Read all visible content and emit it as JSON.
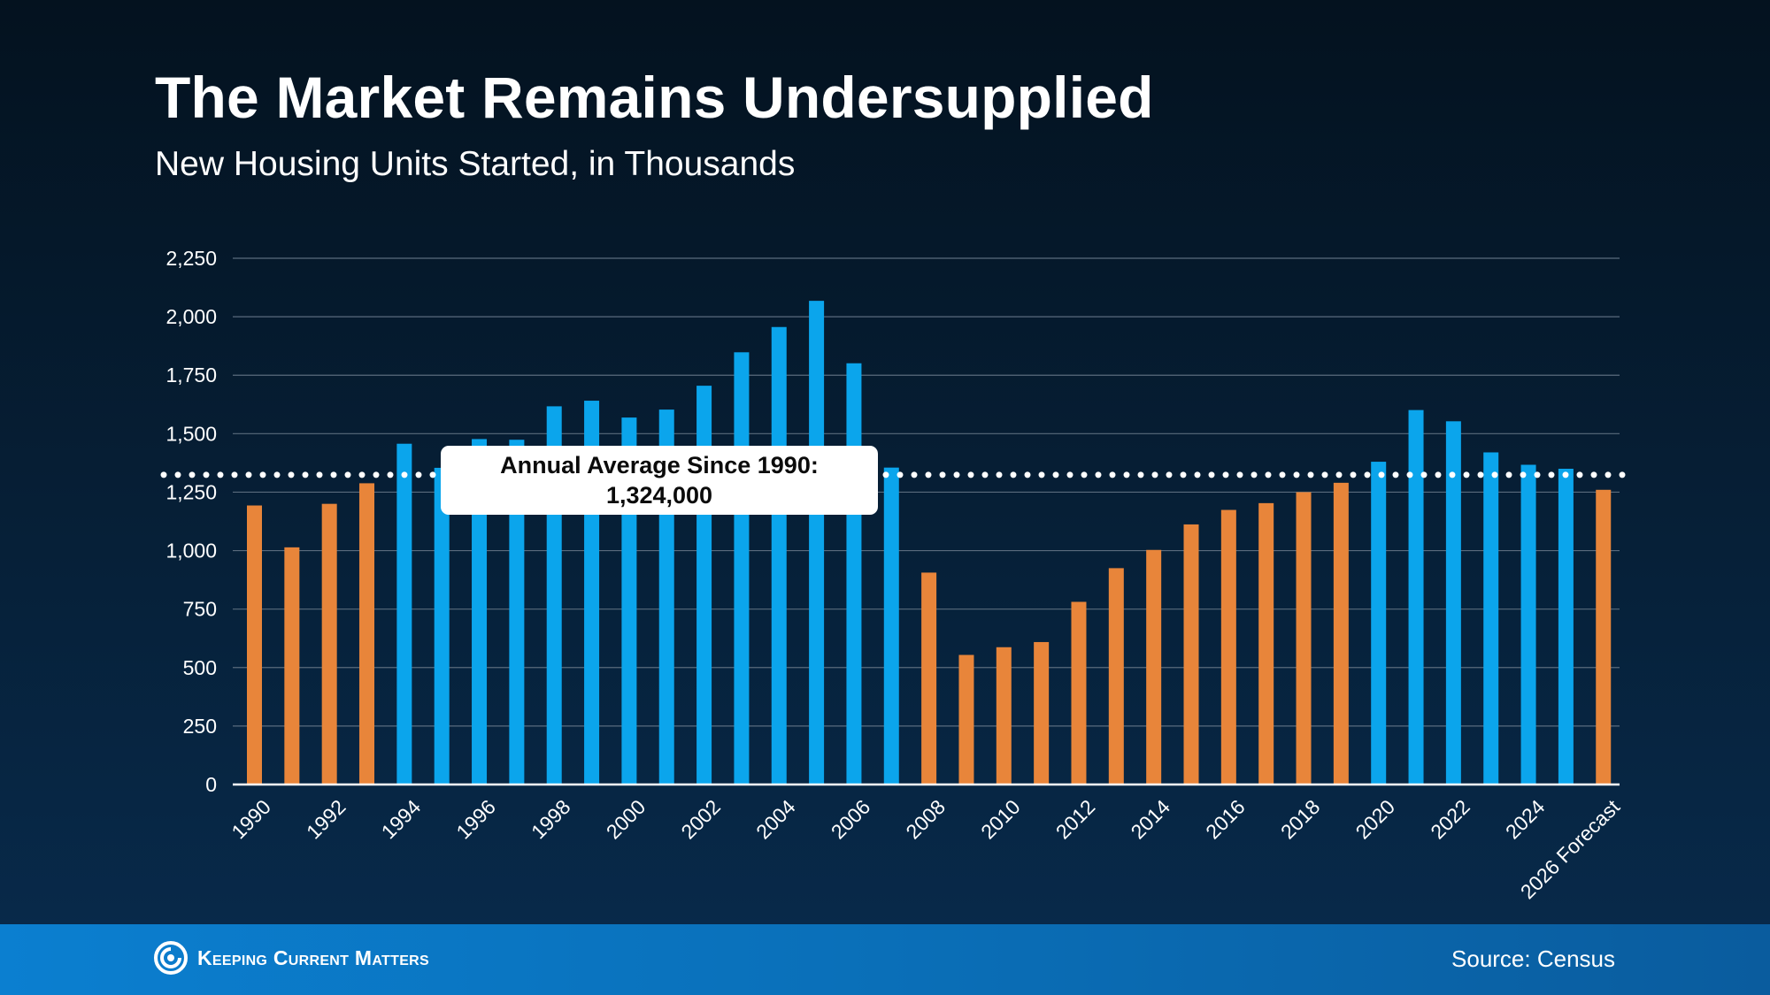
{
  "header": {
    "title": "The Market Remains Undersupplied",
    "subtitle": "New Housing Units Started, in Thousands"
  },
  "annotation": {
    "line1": "Annual Average Since 1990:",
    "line2": "1,324,000"
  },
  "footer": {
    "brand": "Keeping Current Matters",
    "source": "Source: Census"
  },
  "colors": {
    "above_average": "#0ba5ec",
    "below_average": "#e8853a",
    "grid": "#5a6b7d",
    "average_line": "#ffffff"
  },
  "chart_data": {
    "type": "bar",
    "title": "The Market Remains Undersupplied",
    "subtitle": "New Housing Units Started, in Thousands",
    "xlabel": "",
    "ylabel": "",
    "ylim": [
      0,
      2250
    ],
    "yticks": [
      0,
      250,
      500,
      750,
      1000,
      1250,
      1500,
      1750,
      2000,
      2250
    ],
    "ytick_labels": [
      "0",
      "250",
      "500",
      "750",
      "1,000",
      "1,250",
      "1,500",
      "1,750",
      "2,000",
      "2,250"
    ],
    "grid": true,
    "categories": [
      "1990",
      "1991",
      "1992",
      "1993",
      "1994",
      "1995",
      "1996",
      "1997",
      "1998",
      "1999",
      "2000",
      "2001",
      "2002",
      "2003",
      "2004",
      "2005",
      "2006",
      "2007",
      "2008",
      "2009",
      "2010",
      "2011",
      "2012",
      "2013",
      "2014",
      "2015",
      "2016",
      "2017",
      "2018",
      "2019",
      "2020",
      "2021",
      "2022",
      "2023",
      "2024",
      "2025",
      "2026 Forecast"
    ],
    "shown_tick_labels": [
      "1990",
      "1992",
      "1994",
      "1996",
      "1998",
      "2000",
      "2002",
      "2004",
      "2006",
      "2008",
      "2010",
      "2012",
      "2014",
      "2016",
      "2018",
      "2020",
      "2022",
      "2024",
      "2026 Forecast"
    ],
    "values": [
      1193,
      1014,
      1200,
      1288,
      1457,
      1354,
      1477,
      1474,
      1617,
      1641,
      1569,
      1603,
      1705,
      1848,
      1956,
      2068,
      1801,
      1355,
      906,
      554,
      587,
      609,
      781,
      925,
      1003,
      1112,
      1174,
      1203,
      1250,
      1290,
      1380,
      1601,
      1553,
      1420,
      1367,
      1350,
      1260
    ],
    "average_line": 1324,
    "color_rule": "blue above average, orange below average"
  }
}
